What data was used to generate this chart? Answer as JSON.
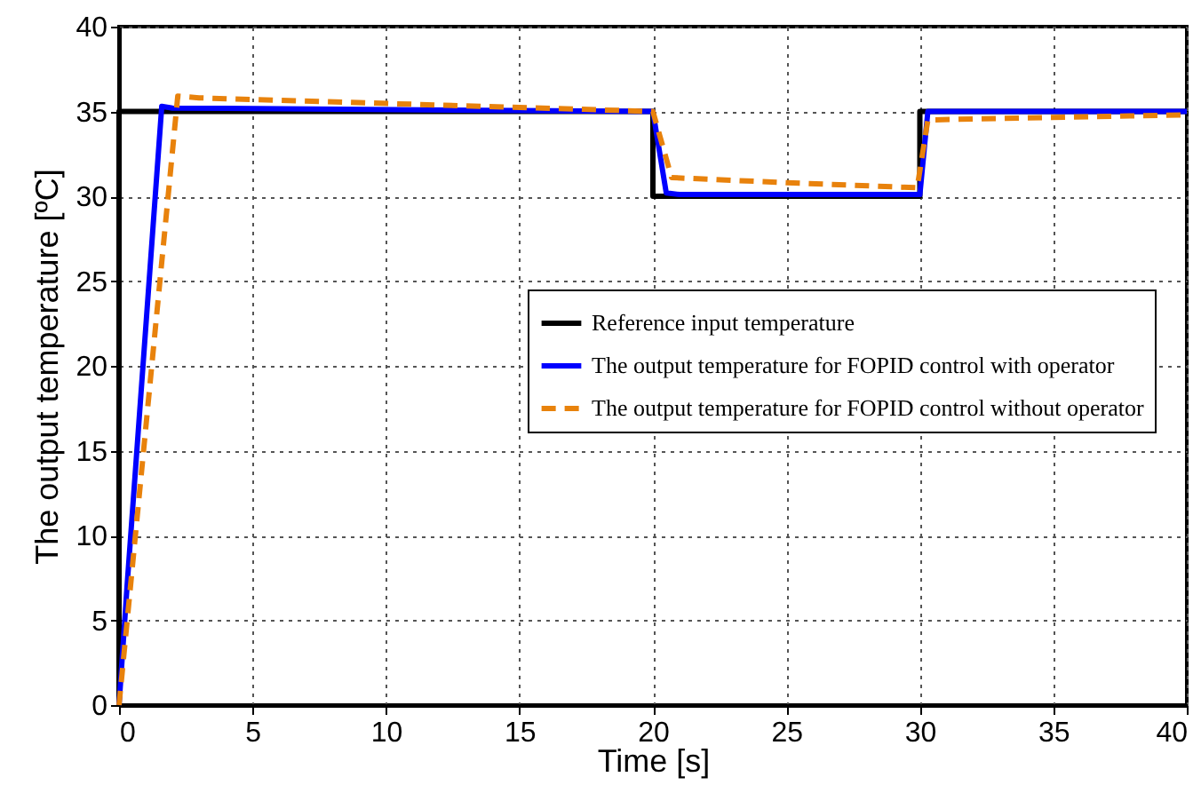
{
  "chart_data": {
    "type": "line",
    "xlabel": "Time [s]",
    "ylabel": "The output temperature [ºC]",
    "xlim": [
      0,
      40
    ],
    "ylim": [
      0,
      40
    ],
    "xticks": [
      0,
      5,
      10,
      15,
      20,
      25,
      30,
      35,
      40
    ],
    "yticks": [
      0,
      5,
      10,
      15,
      20,
      25,
      30,
      35,
      40
    ],
    "grid": true,
    "legend": "right",
    "series": [
      {
        "name": "Reference input temperature",
        "color": "#000000",
        "line_style": "solid",
        "x": [
          0,
          0,
          20,
          20,
          30,
          30,
          40
        ],
        "values": [
          0,
          35,
          35,
          30,
          30,
          35,
          35
        ]
      },
      {
        "name": "The output  temperature for FOPID control with operator",
        "color": "#0000ff",
        "line_style": "solid",
        "x": [
          0,
          0.3,
          1.6,
          2,
          20,
          20.5,
          21,
          30,
          30.3,
          40
        ],
        "values": [
          0,
          7,
          35.3,
          35.2,
          35,
          30.2,
          30.1,
          30.1,
          35,
          35
        ]
      },
      {
        "name": "The output temperature for FOPID control without operator",
        "color": "#e8820c",
        "line_style": "dashed",
        "x": [
          0,
          2.2,
          3,
          20,
          20.7,
          25,
          29.9,
          30.3,
          40
        ],
        "values": [
          0,
          35.9,
          35.8,
          35,
          31.1,
          30.8,
          30.5,
          34.5,
          34.8
        ]
      }
    ]
  }
}
